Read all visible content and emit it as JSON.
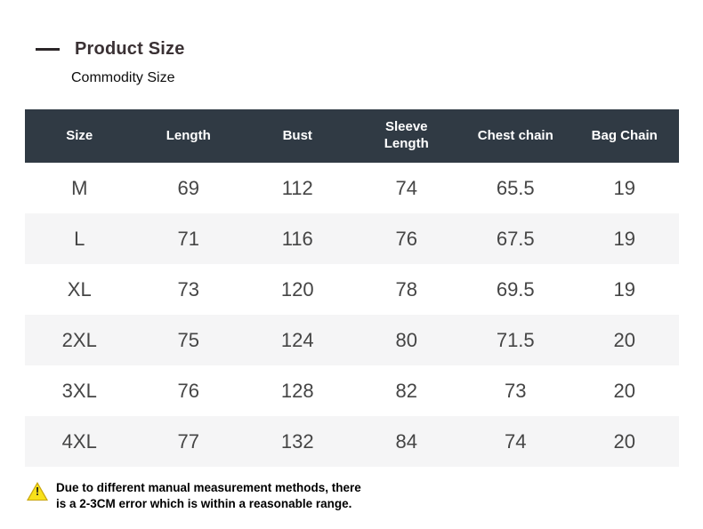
{
  "page": {
    "title": "Product Size",
    "subtitle": "Commodity Size"
  },
  "table": {
    "headers": [
      "Size",
      "Length",
      "Bust",
      "Sleeve Length",
      "Chest chain",
      "Bag Chain"
    ],
    "rows": [
      [
        "M",
        "69",
        "112",
        "74",
        "65.5",
        "19"
      ],
      [
        "L",
        "71",
        "116",
        "76",
        "67.5",
        "19"
      ],
      [
        "XL",
        "73",
        "120",
        "78",
        "69.5",
        "19"
      ],
      [
        "2XL",
        "75",
        "124",
        "80",
        "71.5",
        "20"
      ],
      [
        "3XL",
        "76",
        "128",
        "82",
        "73",
        "20"
      ],
      [
        "4XL",
        "77",
        "132",
        "84",
        "74",
        "20"
      ]
    ]
  },
  "note": {
    "icon": "warning-triangle-icon",
    "icon_glyph": "!",
    "line1": "Due to different manual measurement methods, there",
    "line2": "is a 2-3CM error which is within a reasonable range."
  },
  "colors": {
    "table_header_bg": "#303a44",
    "table_header_text": "#ffffff",
    "row_alt_bg": "#f5f5f6",
    "body_text": "#454545",
    "warning_yellow": "#f8e11a"
  }
}
